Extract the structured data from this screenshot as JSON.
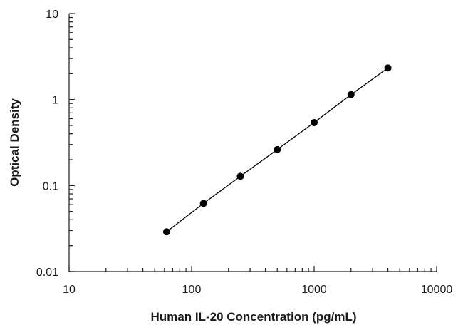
{
  "chart_data": {
    "type": "scatter",
    "xlabel": "Human IL-20 Concentration (pg/mL)",
    "ylabel": "Optical Density",
    "x_scale": "log",
    "y_scale": "log",
    "xlim": [
      10,
      10000
    ],
    "ylim": [
      0.01,
      10
    ],
    "x_ticks": [
      "10",
      "100",
      "1000",
      "10000"
    ],
    "y_ticks": [
      "0.01",
      "0.1",
      "1",
      "10"
    ],
    "grid": false,
    "legend": "none",
    "series": [
      {
        "x": [
          62.5,
          125,
          250,
          500,
          1000,
          2000,
          4000
        ],
        "y": [
          0.029,
          0.062,
          0.128,
          0.262,
          0.54,
          1.14,
          2.33
        ],
        "color": "#000000",
        "line": true,
        "marker": "circle"
      }
    ]
  }
}
